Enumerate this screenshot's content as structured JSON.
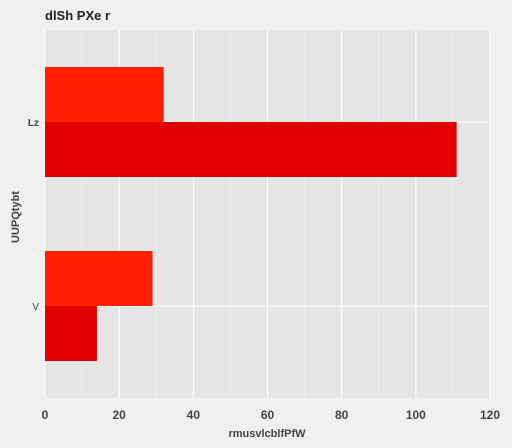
{
  "chart_data": {
    "type": "bar",
    "orientation": "horizontal",
    "title": "dlSh  PXe r",
    "xlabel": "rmusvlcblfPfW",
    "ylabel": "UUPQtybt",
    "categories": [
      "Lz",
      "V"
    ],
    "series": [
      {
        "values": [
          32,
          29
        ],
        "color": "#ff1e00"
      },
      {
        "values": [
          111,
          14
        ],
        "color": "#e00000"
      }
    ],
    "xlim": [
      0,
      120
    ],
    "xticks": [
      0,
      20,
      40,
      60,
      80,
      100,
      120
    ],
    "grid": true,
    "background": "#e5e5e5",
    "figure_background": "#f0f0f0"
  }
}
